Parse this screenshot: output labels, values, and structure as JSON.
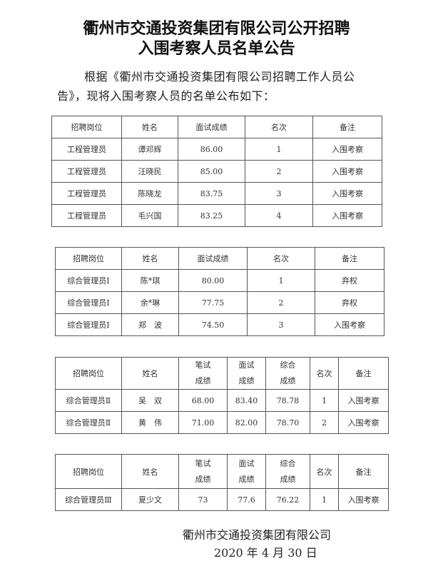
{
  "title": {
    "line1": "衢州市交通投资集团有限公司公开招聘",
    "line2": "入围考察人员名单公告"
  },
  "intro": {
    "line1": "根据《衢州市交通投资集团有限公司招聘工作人员公",
    "line2": "告》，现将入围考察人员的名单公布如下："
  },
  "tables": [
    {
      "headers": [
        "招聘岗位",
        "姓名",
        "面试成绩",
        "名次",
        "备注"
      ],
      "rows": [
        [
          "工程管理员",
          "谭邓辉",
          "86.00",
          "1",
          "入围考察"
        ],
        [
          "工程管理员",
          "汪晓民",
          "85.00",
          "2",
          "入围考察"
        ],
        [
          "工程管理员",
          "陈晓龙",
          "83.75",
          "3",
          "入围考察"
        ],
        [
          "工程管理员",
          "毛兴国",
          "83.25",
          "4",
          "入围考察"
        ]
      ]
    },
    {
      "headers": [
        "招聘岗位",
        "姓名",
        "面试成绩",
        "名次",
        "备注"
      ],
      "rows": [
        [
          "综合管理员Ⅰ",
          "陈*琪",
          "80.00",
          "1",
          "弃权"
        ],
        [
          "综合管理员Ⅰ",
          "余*琳",
          "77.75",
          "2",
          "弃权"
        ],
        [
          "综合管理员Ⅰ",
          "郑　波",
          "74.50",
          "3",
          "入围考察"
        ]
      ]
    },
    {
      "headers": [
        "招聘岗位",
        "姓名",
        "笔试成绩",
        "面试成绩",
        "综合成绩",
        "名次",
        "备注"
      ],
      "rows": [
        [
          "综合管理员Ⅱ",
          "吴　双",
          "68.00",
          "83.40",
          "78.78",
          "1",
          "入围考察"
        ],
        [
          "综合管理员Ⅱ",
          "黄　伟",
          "71.00",
          "82.00",
          "78.70",
          "2",
          "入围考察"
        ]
      ]
    },
    {
      "headers": [
        "招聘岗位",
        "姓名",
        "笔试成绩",
        "面试成绩",
        "综合成绩",
        "名次",
        "备注"
      ],
      "rows": [
        [
          "综合管理员Ⅲ",
          "夏少文",
          "73",
          "77.6",
          "76.22",
          "1",
          "入围考察"
        ]
      ]
    }
  ],
  "signature": {
    "org": "衢州市交通投资集团有限公司",
    "date": "2020 年 4 月 30 日"
  }
}
